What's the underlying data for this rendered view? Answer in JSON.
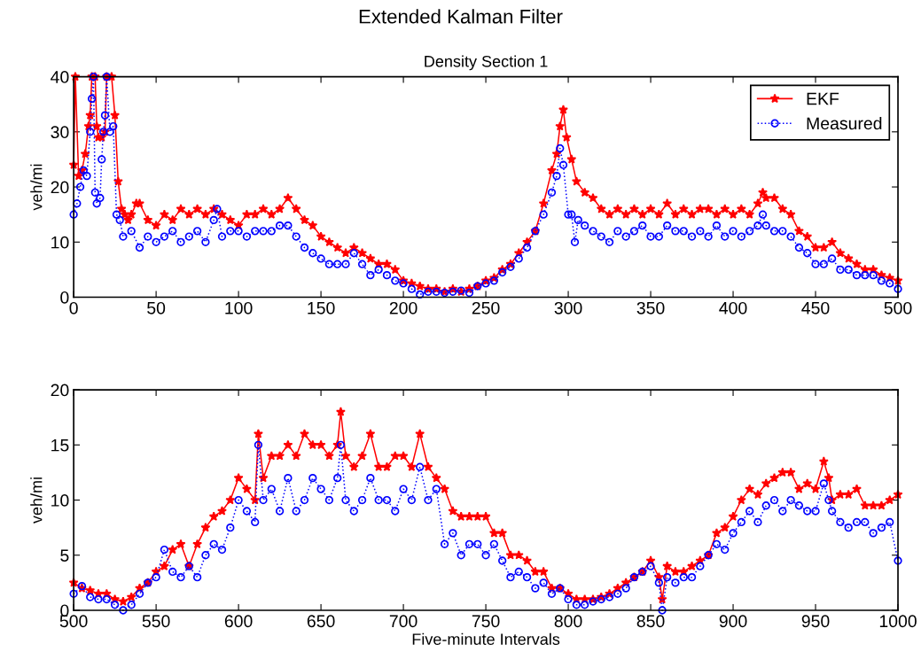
{
  "chart_data": [
    {
      "type": "line",
      "title": "Extended Kalman Filter",
      "subtitle": "Density Section 1",
      "ylabel": "veh/mi",
      "xlim": [
        0,
        500
      ],
      "ylim": [
        0,
        40
      ],
      "xticks": [
        0,
        50,
        100,
        150,
        200,
        250,
        300,
        350,
        400,
        450,
        500
      ],
      "yticks": [
        0,
        10,
        20,
        30,
        40
      ],
      "grid": false,
      "legend": "top right",
      "series": [
        {
          "name": "EKF",
          "color": "#ff0000",
          "marker": "star",
          "line_style": "solid",
          "x": [
            0,
            1,
            3,
            5,
            7,
            9,
            10,
            11,
            13,
            14,
            15,
            17,
            19,
            20,
            23,
            25,
            27,
            29,
            31,
            33,
            35,
            38,
            40,
            45,
            50,
            55,
            60,
            65,
            70,
            75,
            80,
            85,
            90,
            95,
            100,
            105,
            110,
            115,
            120,
            125,
            130,
            135,
            140,
            145,
            150,
            155,
            160,
            165,
            170,
            175,
            180,
            185,
            190,
            195,
            200,
            205,
            210,
            215,
            220,
            225,
            230,
            235,
            240,
            245,
            250,
            255,
            260,
            265,
            270,
            275,
            280,
            285,
            290,
            293,
            295,
            297,
            299,
            302,
            305,
            310,
            315,
            320,
            325,
            330,
            335,
            340,
            345,
            350,
            355,
            360,
            365,
            370,
            375,
            380,
            385,
            390,
            395,
            400,
            405,
            410,
            415,
            418,
            420,
            425,
            430,
            435,
            440,
            445,
            450,
            455,
            460,
            465,
            470,
            475,
            480,
            485,
            490,
            495,
            500
          ],
          "values": [
            24,
            40,
            22,
            23,
            26,
            31,
            33,
            40,
            40,
            31,
            29,
            29,
            30,
            40,
            40,
            33,
            21,
            16,
            15,
            14,
            15,
            17,
            17,
            14,
            13,
            15,
            14,
            16,
            15,
            16,
            15,
            16,
            15,
            14,
            13,
            15,
            15,
            16,
            15,
            16,
            18,
            16,
            14,
            13,
            11,
            10,
            9,
            8,
            9,
            8,
            7,
            6,
            6,
            5,
            3,
            2.5,
            2,
            1.5,
            1.5,
            1,
            1.5,
            1,
            1.5,
            2,
            3,
            3.5,
            5,
            6,
            8,
            10,
            12,
            17,
            23,
            26,
            31,
            34,
            29,
            25,
            21,
            19,
            18,
            16,
            15,
            16,
            15,
            16,
            15,
            16,
            15,
            17,
            15,
            16,
            15,
            16,
            16,
            15,
            16,
            15,
            16,
            15,
            17,
            19,
            18,
            18,
            16,
            15,
            12,
            11,
            9,
            9,
            10,
            8,
            7,
            6,
            5,
            5,
            4,
            3.5,
            3
          ]
        },
        {
          "name": "Measured",
          "color": "#0000ff",
          "marker": "circle",
          "line_style": "dotted",
          "x": [
            0,
            2,
            4,
            6,
            8,
            10,
            11,
            12,
            13,
            14,
            16,
            17,
            18,
            19,
            20,
            22,
            24,
            26,
            28,
            30,
            35,
            40,
            45,
            50,
            55,
            60,
            65,
            70,
            75,
            80,
            85,
            87,
            90,
            95,
            100,
            105,
            110,
            115,
            120,
            125,
            130,
            135,
            140,
            145,
            150,
            155,
            160,
            165,
            170,
            175,
            180,
            185,
            190,
            195,
            200,
            205,
            210,
            215,
            220,
            225,
            230,
            235,
            240,
            245,
            250,
            255,
            260,
            265,
            270,
            275,
            280,
            285,
            290,
            293,
            295,
            297,
            300,
            302,
            304,
            306,
            310,
            315,
            320,
            325,
            330,
            335,
            340,
            345,
            350,
            355,
            360,
            365,
            370,
            375,
            380,
            385,
            390,
            395,
            400,
            405,
            410,
            415,
            418,
            420,
            425,
            430,
            435,
            440,
            445,
            450,
            455,
            460,
            465,
            470,
            475,
            480,
            485,
            490,
            495,
            500
          ],
          "values": [
            15,
            17,
            20,
            23,
            22,
            30,
            36,
            40,
            19,
            17,
            18,
            25,
            30,
            33,
            40,
            30,
            31,
            15,
            14,
            11,
            12,
            9,
            11,
            10,
            11,
            12,
            10,
            11,
            12,
            10,
            14,
            16,
            11,
            12,
            12,
            11,
            12,
            12,
            12,
            13,
            13,
            11,
            9,
            8,
            7,
            6,
            6,
            6,
            8,
            6,
            4,
            5,
            4,
            3,
            2.5,
            1.5,
            0.5,
            1,
            1,
            0.8,
            1,
            1.2,
            0.8,
            2,
            2.5,
            3,
            4.5,
            5.5,
            7,
            9,
            12,
            15,
            19,
            22,
            27,
            24,
            15,
            15,
            10,
            14,
            13,
            12,
            11,
            10,
            12,
            11,
            12,
            13,
            11,
            11,
            13,
            12,
            12,
            11,
            12,
            11,
            13,
            11,
            12,
            11,
            12,
            13,
            15,
            13,
            12,
            12,
            11,
            9,
            8,
            6,
            6,
            7,
            5,
            5,
            4,
            4,
            4,
            3,
            2.5,
            1.5
          ]
        }
      ]
    },
    {
      "type": "line",
      "xlabel": "Five-minute Intervals",
      "ylabel": "veh/mi",
      "xlim": [
        500,
        1000
      ],
      "ylim": [
        0,
        20
      ],
      "xticks": [
        500,
        550,
        600,
        650,
        700,
        750,
        800,
        850,
        900,
        950,
        1000
      ],
      "yticks": [
        0,
        5,
        10,
        15,
        20
      ],
      "grid": false,
      "x": [
        500,
        505,
        510,
        515,
        520,
        525,
        530,
        535,
        540,
        545,
        550,
        555,
        560,
        565,
        570,
        575,
        580,
        585,
        590,
        595,
        600,
        605,
        610,
        612,
        615,
        620,
        625,
        630,
        635,
        640,
        645,
        650,
        655,
        660,
        662,
        665,
        670,
        675,
        680,
        685,
        690,
        695,
        700,
        705,
        710,
        715,
        720,
        725,
        730,
        735,
        740,
        745,
        750,
        755,
        760,
        765,
        770,
        775,
        780,
        785,
        790,
        795,
        800,
        805,
        810,
        815,
        820,
        825,
        830,
        835,
        840,
        845,
        850,
        855,
        857,
        860,
        865,
        870,
        875,
        880,
        885,
        890,
        895,
        900,
        905,
        910,
        915,
        920,
        925,
        930,
        935,
        940,
        945,
        950,
        955,
        958,
        960,
        965,
        970,
        975,
        980,
        985,
        990,
        995,
        1000
      ],
      "series": [
        {
          "color": "#ff0000",
          "marker": "star",
          "line_style": "solid",
          "values": [
            2.5,
            2,
            1.8,
            1.5,
            1.5,
            1,
            0.8,
            1.2,
            2,
            2.5,
            3.5,
            4,
            5.5,
            6,
            4,
            6,
            7.5,
            8.5,
            9,
            10,
            12,
            11,
            10,
            16,
            12,
            14,
            14,
            15,
            14,
            16,
            15,
            15,
            14,
            15,
            18,
            14,
            13,
            14,
            16,
            13,
            13,
            14,
            14,
            13,
            16,
            13,
            12,
            11,
            9,
            8.5,
            8.5,
            8.5,
            8.5,
            7,
            7,
            5,
            5,
            4.5,
            3.5,
            3.5,
            2,
            2,
            1.5,
            1,
            1,
            1,
            1.2,
            1.5,
            2,
            2.5,
            3,
            3.5,
            4.5,
            3,
            1,
            4,
            3.5,
            3.5,
            4,
            4.5,
            5,
            7,
            7.5,
            8.5,
            10,
            11,
            10.5,
            11.5,
            12,
            12.5,
            12.5,
            11,
            11.5,
            11,
            13.5,
            12,
            10,
            10.5,
            10.5,
            11,
            9.5,
            9.5,
            9.5,
            10,
            10.5
          ]
        },
        {
          "color": "#0000ff",
          "marker": "circle",
          "line_style": "dotted",
          "values": [
            1.5,
            2.2,
            1.2,
            1,
            1,
            0.5,
            0,
            0.5,
            1.5,
            2.5,
            3,
            5.5,
            3.5,
            3,
            4,
            3,
            5,
            6,
            5.5,
            7.5,
            10,
            9,
            8,
            15,
            10,
            11,
            9,
            12,
            9,
            10,
            12,
            11,
            10,
            12,
            15,
            10,
            9,
            10,
            12,
            10,
            10,
            9,
            11,
            10,
            13,
            10,
            11,
            6,
            7,
            5,
            6,
            6,
            5,
            6,
            4.5,
            3,
            3.5,
            3,
            2,
            2.5,
            1.5,
            2,
            1,
            0.5,
            0.5,
            0.8,
            1,
            1.2,
            1.5,
            2,
            3,
            3.5,
            4,
            2.5,
            0,
            3,
            2.5,
            3,
            3,
            4,
            5,
            6,
            5.5,
            7,
            8,
            9,
            8,
            9.5,
            10,
            9,
            10,
            9.5,
            9,
            9,
            11.5,
            10,
            9,
            8,
            7.5,
            8,
            8,
            7,
            7.5,
            8,
            4.5
          ]
        }
      ]
    }
  ]
}
